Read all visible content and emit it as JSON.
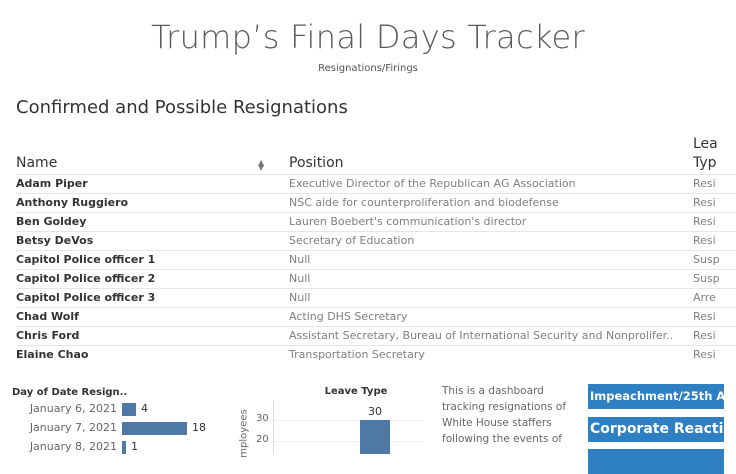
{
  "header": {
    "title": "Trump’s Final Days Tracker",
    "subtitle": "Resignations/Firings"
  },
  "section_title": "Confirmed and Possible Resignations",
  "table": {
    "columns": {
      "name": "Name",
      "position": "Position",
      "leave_type_line1": "Lea",
      "leave_type_line2": "Typ"
    },
    "rows": [
      {
        "name": "Adam Piper",
        "position": "Executive Director of the Republican AG Association",
        "type": "Resi"
      },
      {
        "name": "Anthony Ruggiero",
        "position": "NSC aide for counterproliferation and biodefense",
        "type": "Resi"
      },
      {
        "name": "Ben Goldey",
        "position": "Lauren Boebert's communication's director",
        "type": "Resi"
      },
      {
        "name": "Betsy DeVos",
        "position": "Secretary of Education",
        "type": "Resi"
      },
      {
        "name": "Capitol Police officer 1",
        "position": "Null",
        "type": "Susp"
      },
      {
        "name": "Capitol Police officer 2",
        "position": "Null",
        "type": "Susp"
      },
      {
        "name": "Capitol Police officer 3",
        "position": "Null",
        "type": "Arre"
      },
      {
        "name": "Chad Wolf",
        "position": "Acting DHS Secretary",
        "type": "Resi"
      },
      {
        "name": "Chris Ford",
        "position": "Assistant Secretary, Bureau of International Security and Nonprolifer..",
        "type": "Resi"
      },
      {
        "name": "Elaine Chao",
        "position": "Transportation Secretary",
        "type": "Resi"
      }
    ]
  },
  "day_chart": {
    "title": "Day of Date Resign..",
    "items": [
      {
        "label": "January 6, 2021",
        "value": 4
      },
      {
        "label": "January 7, 2021",
        "value": 18
      },
      {
        "label": "January 8, 2021",
        "value": 1
      }
    ]
  },
  "chart_data": {
    "type": "bar",
    "title": "Leave Type",
    "ylabel": "mployees",
    "ticks": [
      30,
      20
    ],
    "values": [
      30
    ],
    "ylim": [
      0,
      36
    ]
  },
  "description": "This is a dashboard tracking resignations of White House staffers following the events of",
  "buttons": [
    {
      "label": "Impeachment/25th A..."
    },
    {
      "label": "Corporate Reacti..."
    },
    {
      "label": ""
    }
  ],
  "colors": {
    "bar": "#4e79a7",
    "button": "#2f80c2"
  }
}
